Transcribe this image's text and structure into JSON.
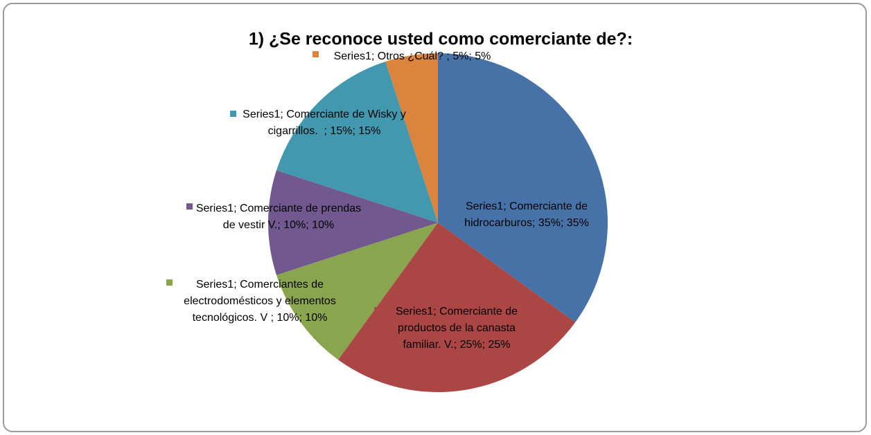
{
  "chart_data": {
    "type": "pie",
    "title": "1) ¿Se reconoce usted como comerciante de?:",
    "values": [
      35,
      25,
      10,
      10,
      15,
      5
    ],
    "value_labels": [
      "Series1; Comerciante de hidrocarburos; 35%; 35%",
      "Series1; Comerciante de productos de la canasta familiar. V.; 25%; 25%",
      "Series1; Comerciantes de electrodomésticos y elementos tecnológicos. V ; 10%; 10%",
      "Series1; Comerciante de prendas de vestir V.; 10%; 10%",
      "Series1; Comerciante de Wisky y cigarrillos.  ; 15%; 15%",
      "Series1; Otros ¿Cuál? ; 5%; 5%"
    ],
    "colors": [
      "#4672a8",
      "#aa4643",
      "#89a54e",
      "#71588f",
      "#4198af",
      "#db843d"
    ]
  }
}
